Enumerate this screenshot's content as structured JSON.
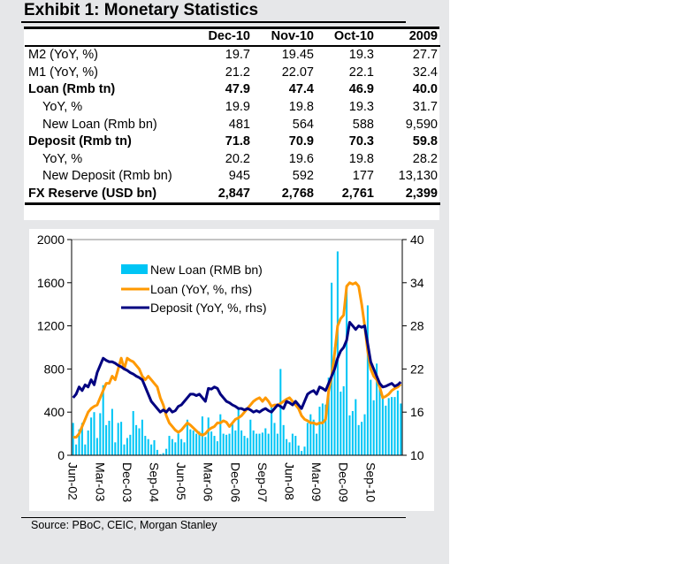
{
  "title": "Exhibit 1: Monetary Statistics",
  "table": {
    "columns": [
      "",
      "Dec-10",
      "Nov-10",
      "Oct-10",
      "2009"
    ],
    "rows": [
      {
        "label": "M2 (YoY, %)",
        "values": [
          "19.7",
          "19.45",
          "19.3",
          "27.7"
        ],
        "bold": false,
        "indent": false
      },
      {
        "label": "M1 (YoY, %)",
        "values": [
          "21.2",
          "22.07",
          "22.1",
          "32.4"
        ],
        "bold": false,
        "indent": false
      },
      {
        "label": "Loan (Rmb tn)",
        "values": [
          "47.9",
          "47.4",
          "46.9",
          "40.0"
        ],
        "bold": true,
        "indent": false
      },
      {
        "label": "YoY, %",
        "values": [
          "19.9",
          "19.8",
          "19.3",
          "31.7"
        ],
        "bold": false,
        "indent": true
      },
      {
        "label": "New Loan (Rmb bn)",
        "values": [
          "481",
          "564",
          "588",
          "9,590"
        ],
        "bold": false,
        "indent": true
      },
      {
        "label": "Deposit (Rmb tn)",
        "values": [
          "71.8",
          "70.9",
          "70.3",
          "59.8"
        ],
        "bold": true,
        "indent": false
      },
      {
        "label": "YoY, %",
        "values": [
          "20.2",
          "19.6",
          "19.8",
          "28.2"
        ],
        "bold": false,
        "indent": true
      },
      {
        "label": "New Deposit (Rmb bn)",
        "values": [
          "945",
          "592",
          "177",
          "13,130"
        ],
        "bold": false,
        "indent": true
      },
      {
        "label": "FX Reserve (USD bn)",
        "values": [
          "2,847",
          "2,768",
          "2,761",
          "2,399"
        ],
        "bold": true,
        "indent": false
      }
    ]
  },
  "source": "Source: PBoC, CEIC, Morgan Stanley",
  "chart_data": {
    "type": "bar+line",
    "title": "",
    "xlabel": "",
    "ylabel": "",
    "ylim": [
      0,
      2000
    ],
    "y2lim": [
      10,
      40
    ],
    "yticks": [
      0,
      400,
      800,
      1200,
      1600,
      2000
    ],
    "y2ticks": [
      10,
      16,
      22,
      28,
      34,
      40
    ],
    "grid": false,
    "legend_position": "top-left",
    "x_start": "Jun-02",
    "x_end": "Dec-10",
    "x_ticklabels": [
      "Jun-02",
      "Mar-03",
      "Dec-03",
      "Sep-04",
      "Jun-05",
      "Mar-06",
      "Dec-06",
      "Sep-07",
      "Jun-08",
      "Mar-09",
      "Dec-09",
      "Sep-10"
    ],
    "x_tick_every_months": 9,
    "colors": {
      "new_loan": "#00c5f5",
      "loan_yoy": "#ff9900",
      "deposit_yoy": "#000080"
    },
    "series": [
      {
        "name": "New Loan (RMB bn)",
        "axis": "left",
        "type": "bar",
        "values": [
          300,
          100,
          240,
          300,
          100,
          230,
          350,
          400,
          160,
          390,
          650,
          280,
          320,
          430,
          120,
          300,
          310,
          100,
          160,
          190,
          410,
          280,
          250,
          330,
          180,
          150,
          100,
          140,
          50,
          10,
          20,
          60,
          180,
          150,
          120,
          200,
          150,
          120,
          330,
          240,
          230,
          200,
          220,
          360,
          170,
          350,
          220,
          180,
          130,
          380,
          200,
          190,
          200,
          290,
          230,
          440,
          230,
          180,
          160,
          330,
          230,
          200,
          200,
          210,
          250,
          200,
          450,
          300,
          200,
          800,
          280,
          150,
          120,
          200,
          180,
          90,
          40,
          80,
          300,
          380,
          330,
          200,
          450,
          480,
          470,
          720,
          1600,
          1000,
          1890,
          590,
          640,
          1530,
          370,
          410,
          520,
          280,
          310,
          380,
          1390,
          700,
          510,
          850,
          640,
          530,
          460,
          530,
          540,
          540,
          600,
          480
        ],
        "note": "monthly values estimated from bar heights"
      },
      {
        "name": "Loan (YoY, %, rhs)",
        "axis": "right",
        "type": "line",
        "values": [
          12.5,
          12.5,
          13.0,
          14.0,
          15.0,
          16.0,
          16.5,
          16.8,
          17.0,
          18.0,
          19.0,
          20.0,
          20.0,
          21.0,
          20.5,
          22.0,
          23.5,
          22.0,
          23.5,
          23.2,
          23.0,
          22.5,
          22.0,
          21.0,
          20.5,
          21.0,
          20.5,
          20.0,
          19.5,
          18.0,
          17.0,
          15.5,
          14.5,
          14.0,
          13.5,
          13.2,
          13.5,
          14.0,
          14.5,
          14.2,
          13.8,
          13.4,
          13.0,
          12.8,
          13.0,
          13.5,
          13.8,
          14.0,
          14.5,
          14.5,
          14.8,
          14.6,
          14.0,
          14.5,
          15.0,
          15.2,
          15.5,
          16.0,
          16.5,
          17.0,
          17.5,
          17.8,
          18.0,
          17.5,
          18.0,
          17.5,
          16.8,
          17.0,
          17.0,
          17.2,
          17.5,
          17.8,
          18.0,
          17.5,
          17.0,
          16.5,
          15.5,
          15.0,
          14.8,
          14.5,
          14.5,
          14.3,
          14.5,
          14.5,
          15.0,
          18.9,
          21.0,
          24.2,
          28.0,
          29.0,
          29.5,
          33.5,
          34.0,
          33.8,
          34.0,
          33.5,
          31.0,
          28.0,
          24.5,
          22.0,
          21.0,
          20.5,
          19.5,
          18.0,
          18.2,
          18.5,
          19.0,
          19.3,
          19.5,
          19.9
        ],
        "note": "monthly values estimated from line"
      },
      {
        "name": "Deposit (YoY, %, rhs)",
        "axis": "right",
        "type": "line",
        "values": [
          18.0,
          18.5,
          19.5,
          19.0,
          19.8,
          19.5,
          20.5,
          19.8,
          21.5,
          22.5,
          23.5,
          23.2,
          23.0,
          23.0,
          22.8,
          22.5,
          22.3,
          22.0,
          21.8,
          21.5,
          21.3,
          21.0,
          20.8,
          20.5,
          19.5,
          18.5,
          17.5,
          17.0,
          16.5,
          16.0,
          16.3,
          16.0,
          16.5,
          16.0,
          16.2,
          16.8,
          17.0,
          17.5,
          18.0,
          18.5,
          18.5,
          18.3,
          18.5,
          18.0,
          17.5,
          19.3,
          19.2,
          19.5,
          19.3,
          18.5,
          18.0,
          17.5,
          17.3,
          17.0,
          16.8,
          16.5,
          16.5,
          16.3,
          16.5,
          16.3,
          16.0,
          16.2,
          16.0,
          16.3,
          16.5,
          16.2,
          16.0,
          16.5,
          17.0,
          16.8,
          16.5,
          17.5,
          17.3,
          17.0,
          17.5,
          17.0,
          16.5,
          17.5,
          18.5,
          18.8,
          19.0,
          18.5,
          19.5,
          19.3,
          19.0,
          20.0,
          21.0,
          22.0,
          23.5,
          24.5,
          25.0,
          26.0,
          28.5,
          28.0,
          27.5,
          28.0,
          27.8,
          28.0,
          25.5,
          23.0,
          22.0,
          21.0,
          20.0,
          19.5,
          19.6,
          19.8,
          20.0,
          19.6,
          19.8,
          20.2
        ],
        "note": "monthly values estimated from line"
      }
    ]
  }
}
